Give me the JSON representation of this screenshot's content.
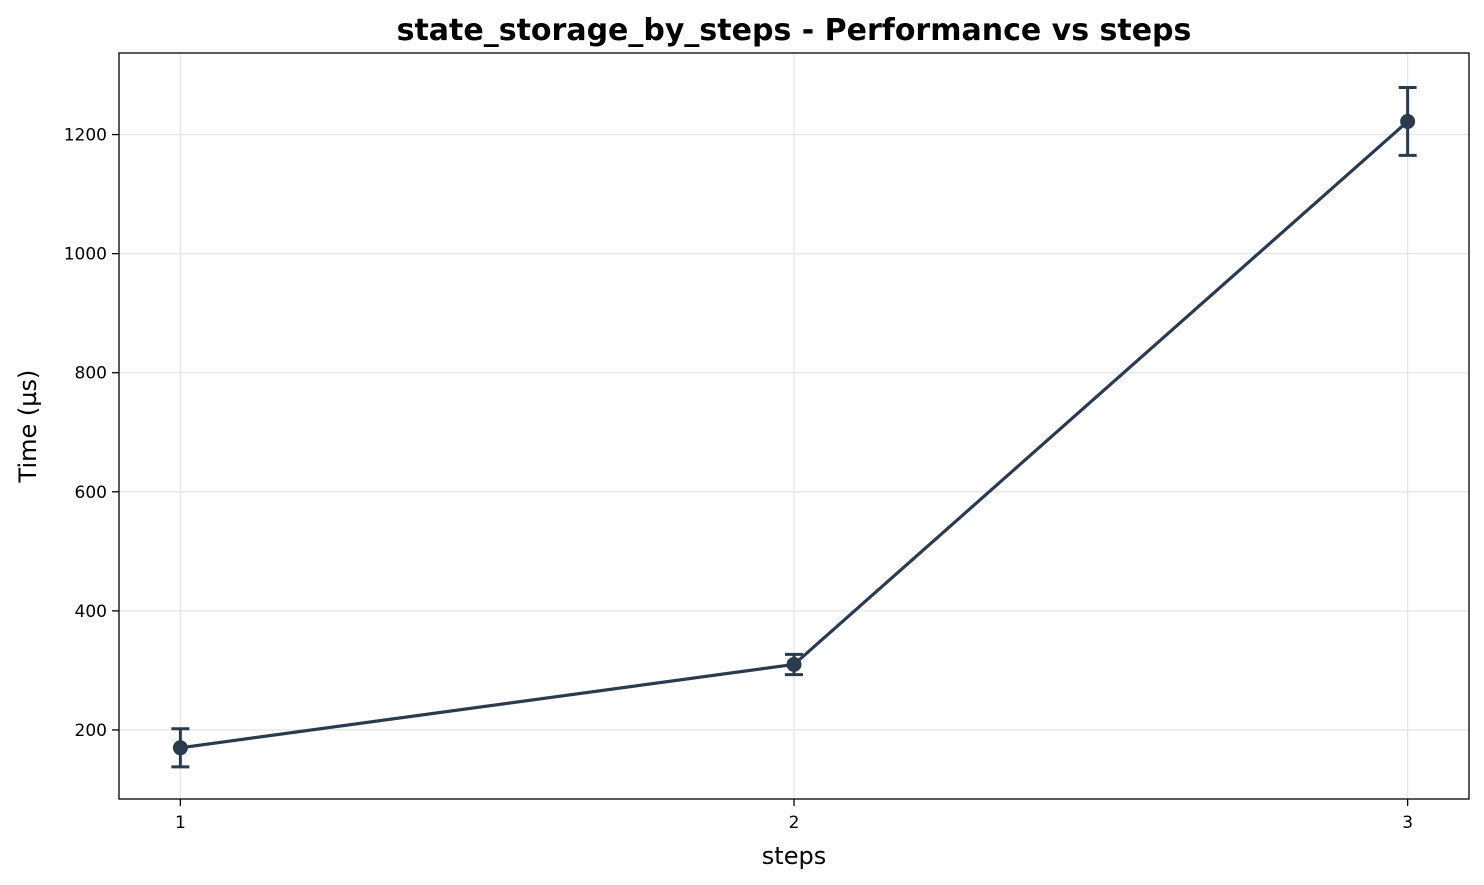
{
  "chart_data": {
    "type": "line",
    "title": "state_storage_by_steps - Performance vs steps",
    "xlabel": "steps",
    "ylabel": "Time (µs)",
    "x": [
      1,
      2,
      3
    ],
    "xticks": [
      1,
      2,
      3
    ],
    "xlim": [
      0.9,
      3.1
    ],
    "ylim": [
      84,
      1337
    ],
    "yticks": [
      200,
      400,
      600,
      800,
      1000,
      1200
    ],
    "grid": true,
    "series": [
      {
        "values": [
          170,
          310,
          1222
        ],
        "error": [
          32,
          17,
          57
        ],
        "color": "#2b3a4c"
      }
    ]
  }
}
